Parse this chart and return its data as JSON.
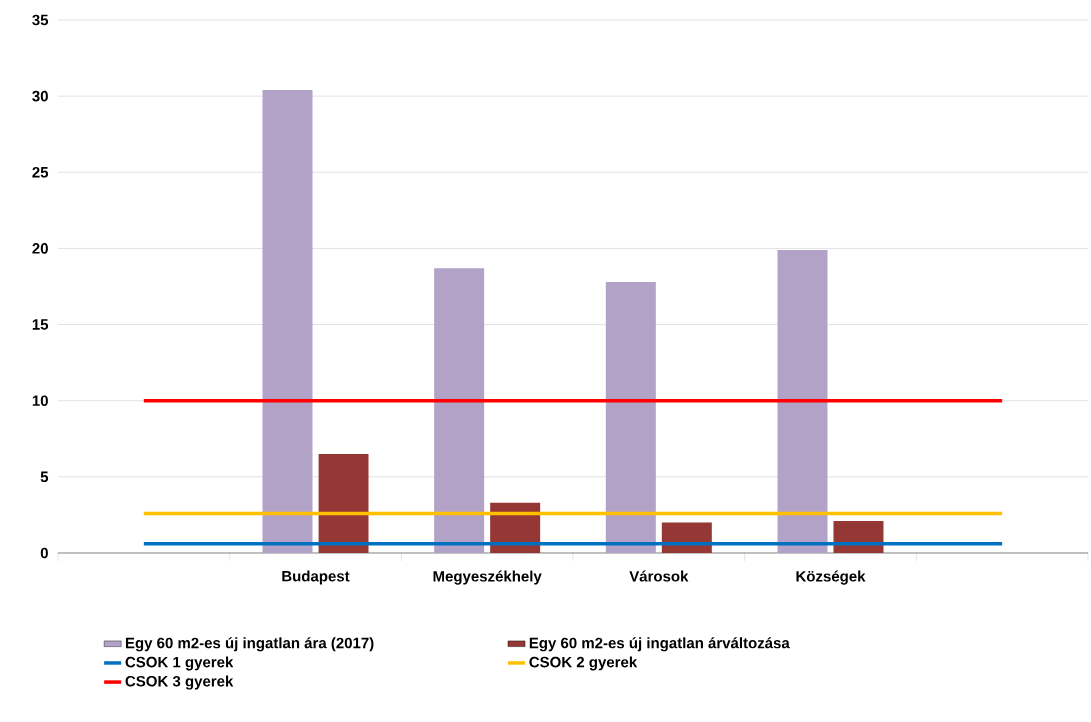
{
  "chart_data": {
    "type": "bar",
    "categories": [
      null,
      "Budapest",
      "Megyeszékhely",
      "Városok",
      "Községek",
      null
    ],
    "series": [
      {
        "name": "Egy 60 m2-es új ingatlan ára (2017)",
        "color": "#b3a2c7",
        "values": [
          null,
          30.4,
          18.7,
          17.8,
          19.9,
          null
        ]
      },
      {
        "name": "Egy 60 m2-es új ingatlan árváltozása",
        "color": "#953735",
        "values": [
          null,
          6.5,
          3.3,
          2.0,
          2.1,
          null
        ]
      },
      {
        "name": "CSOK 1 gyerek",
        "type": "line",
        "color": "#0070c0",
        "values": [
          0.6,
          0.6,
          0.6,
          0.6,
          0.6,
          0.6
        ]
      },
      {
        "name": "CSOK 2 gyerek",
        "type": "line",
        "color": "#ffc000",
        "values": [
          2.6,
          2.6,
          2.6,
          2.6,
          2.6,
          2.6
        ]
      },
      {
        "name": "CSOK 3 gyerek",
        "type": "line",
        "color": "#ff0000",
        "values": [
          10,
          10,
          10,
          10,
          10,
          10
        ]
      }
    ],
    "ylim": [
      0,
      35
    ],
    "yticks": [
      0,
      5,
      10,
      15,
      20,
      25,
      30,
      35
    ],
    "grid": "y",
    "legend": "bottom"
  }
}
